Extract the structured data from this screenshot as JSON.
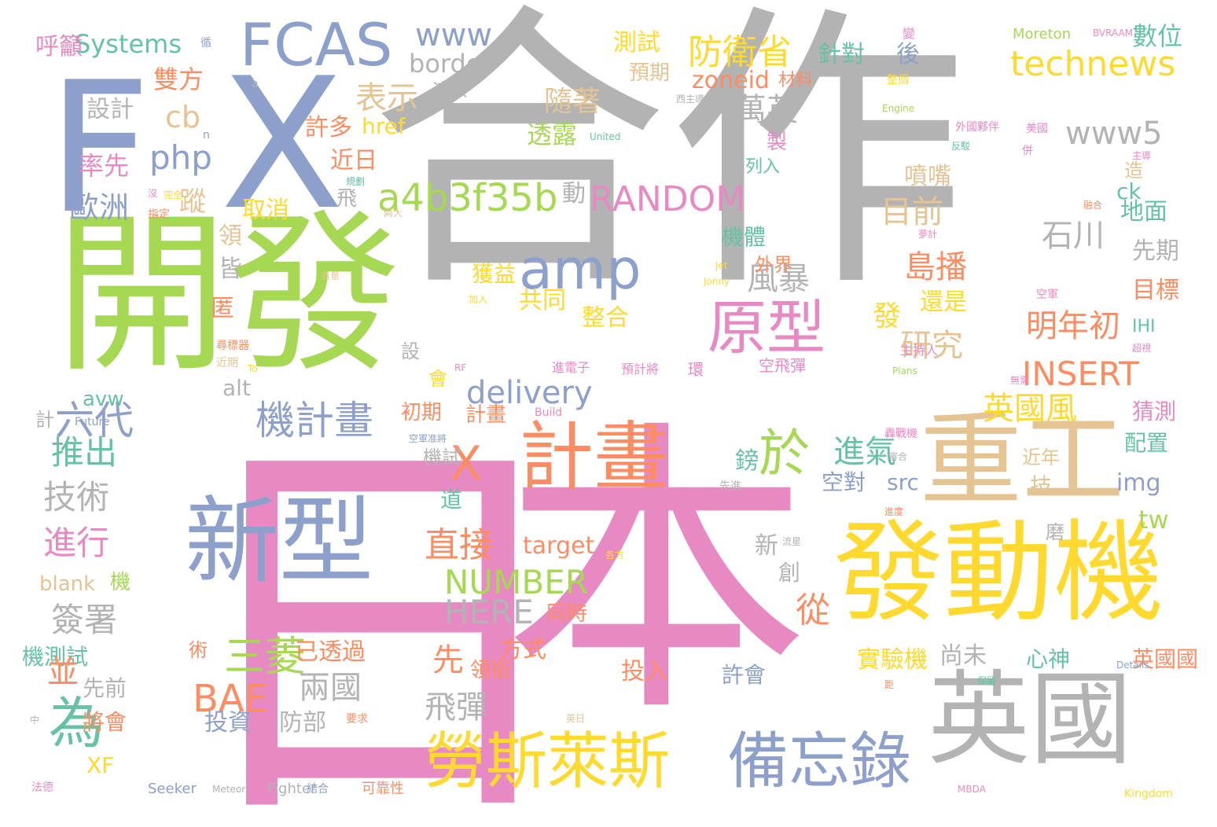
{
  "palette": {
    "gray": "#b3b3b3",
    "pink": "#e78ac3",
    "green": "#a6d854",
    "blue": "#8da0cb",
    "yellow": "#ffd92f",
    "tan": "#e5c494",
    "orange": "#fc8d62",
    "teal": "#66c2a5"
  },
  "words": [
    {
      "text": "合作",
      "color": "gray",
      "vertical": false
    },
    {
      "text": "本",
      "color": "pink",
      "vertical": false
    },
    {
      "text": "日",
      "color": "pink",
      "vertical": true
    },
    {
      "text": "開發",
      "color": "green",
      "vertical": false
    },
    {
      "text": "X",
      "color": "blue",
      "vertical": false
    },
    {
      "text": "F",
      "color": "blue",
      "vertical": false
    },
    {
      "text": "新型",
      "color": "blue",
      "vertical": false
    },
    {
      "text": "發動機",
      "color": "yellow",
      "vertical": false
    },
    {
      "text": "英國",
      "color": "gray",
      "vertical": false
    },
    {
      "text": "重工",
      "color": "tan",
      "vertical": false
    },
    {
      "text": "計畫",
      "color": "orange",
      "vertical": false
    },
    {
      "text": "勞斯萊斯",
      "color": "yellow",
      "vertical": false
    },
    {
      "text": "備忘錄",
      "color": "blue",
      "vertical": false
    },
    {
      "text": "原型",
      "color": "pink",
      "vertical": false
    },
    {
      "text": "FCAS",
      "color": "blue",
      "vertical": false
    },
    {
      "text": "amp",
      "color": "blue",
      "vertical": false
    },
    {
      "text": "於",
      "color": "green",
      "vertical": false
    },
    {
      "text": "X",
      "color": "orange",
      "vertical": false
    },
    {
      "text": "六代",
      "color": "blue",
      "vertical": false
    },
    {
      "text": "機計畫",
      "color": "blue",
      "vertical": false
    },
    {
      "text": "a4b3f35b",
      "color": "green",
      "vertical": false
    },
    {
      "text": "RANDOM",
      "color": "pink",
      "vertical": false
    },
    {
      "text": "technews",
      "color": "yellow",
      "vertical": false
    },
    {
      "text": "防衛省",
      "color": "yellow",
      "vertical": false
    },
    {
      "text": "www",
      "color": "blue",
      "vertical": false
    },
    {
      "text": "Systems",
      "color": "teal",
      "vertical": false
    },
    {
      "text": "為",
      "color": "teal",
      "vertical": false
    },
    {
      "text": "INSERT",
      "color": "orange",
      "vertical": false
    },
    {
      "text": "NUMBER",
      "color": "green",
      "vertical": false
    },
    {
      "text": "HERE",
      "color": "gray",
      "vertical": false
    },
    {
      "text": "delivery",
      "color": "blue",
      "vertical": false
    },
    {
      "text": "www5",
      "color": "gray",
      "vertical": false
    },
    {
      "text": "明年初",
      "color": "orange",
      "vertical": false
    },
    {
      "text": "英國風",
      "color": "yellow",
      "vertical": false
    },
    {
      "text": "三菱",
      "color": "green",
      "vertical": false
    },
    {
      "text": "BAE",
      "color": "orange",
      "vertical": false
    },
    {
      "text": "兩國",
      "color": "gray",
      "vertical": false
    },
    {
      "text": "飛彈",
      "color": "gray",
      "vertical": false
    },
    {
      "text": "直接",
      "color": "orange",
      "vertical": false
    },
    {
      "text": "表示",
      "color": "tan",
      "vertical": false
    },
    {
      "text": "php",
      "color": "blue",
      "vertical": false
    },
    {
      "text": "cb",
      "color": "tan",
      "vertical": false
    },
    {
      "text": "歐洲",
      "color": "blue",
      "vertical": false
    },
    {
      "text": "推出",
      "color": "teal",
      "vertical": false
    },
    {
      "text": "技術",
      "color": "gray",
      "vertical": false
    },
    {
      "text": "進行",
      "color": "pink",
      "vertical": false
    },
    {
      "text": "簽署",
      "color": "gray",
      "vertical": false
    },
    {
      "text": "萬英",
      "color": "gray",
      "vertical": false
    },
    {
      "text": "島播",
      "color": "orange",
      "vertical": false
    },
    {
      "text": "石川",
      "color": "gray",
      "vertical": false
    },
    {
      "text": "目前",
      "color": "tan",
      "vertical": false
    },
    {
      "text": "研究",
      "color": "tan",
      "vertical": false
    },
    {
      "text": "風暴",
      "color": "gray",
      "vertical": false
    },
    {
      "text": "zoneid",
      "color": "orange",
      "vertical": false
    },
    {
      "text": "border",
      "color": "gray",
      "vertical": false
    },
    {
      "text": "數位",
      "color": "teal",
      "vertical": false
    },
    {
      "text": "測試",
      "color": "yellow",
      "vertical": false
    },
    {
      "text": "雙方",
      "color": "orange",
      "vertical": false
    },
    {
      "text": "設計",
      "color": "gray",
      "vertical": false
    },
    {
      "text": "率先",
      "color": "pink",
      "vertical": false
    },
    {
      "text": "取消",
      "color": "yellow",
      "vertical": false
    },
    {
      "text": "近日",
      "color": "orange",
      "vertical": false
    },
    {
      "text": "許多",
      "color": "orange",
      "vertical": false
    },
    {
      "text": "href",
      "color": "yellow",
      "vertical": false
    },
    {
      "text": "透露",
      "color": "green",
      "vertical": false
    },
    {
      "text": "共同",
      "color": "yellow",
      "vertical": false
    },
    {
      "text": "整合",
      "color": "yellow",
      "vertical": false
    },
    {
      "text": "獲益",
      "color": "yellow",
      "vertical": false
    },
    {
      "text": "還是",
      "color": "yellow",
      "vertical": false
    },
    {
      "text": "目標",
      "color": "orange",
      "vertical": false
    },
    {
      "text": "先期",
      "color": "gray",
      "vertical": false
    },
    {
      "text": "地面",
      "color": "teal",
      "vertical": false
    },
    {
      "text": "噴嘴",
      "color": "tan",
      "vertical": false
    },
    {
      "text": "外界",
      "color": "orange",
      "vertical": false
    },
    {
      "text": "機體",
      "color": "teal",
      "vertical": false
    },
    {
      "text": "列入",
      "color": "teal",
      "vertical": false
    },
    {
      "text": "材料",
      "color": "orange",
      "vertical": false
    },
    {
      "text": "預期",
      "color": "tan",
      "vertical": false
    },
    {
      "text": "這款",
      "color": "gray",
      "vertical": false
    },
    {
      "text": "target",
      "color": "orange",
      "vertical": false
    },
    {
      "text": "src",
      "color": "blue",
      "vertical": false
    },
    {
      "text": "img",
      "color": "blue",
      "vertical": false
    },
    {
      "text": "tw",
      "color": "green",
      "vertical": false
    },
    {
      "text": "ck",
      "color": "teal",
      "vertical": false
    },
    {
      "text": "IHI",
      "color": "teal",
      "vertical": false
    },
    {
      "text": "alt",
      "color": "gray",
      "vertical": false
    },
    {
      "text": "avw",
      "color": "teal",
      "vertical": false
    },
    {
      "text": "blank",
      "color": "tan",
      "vertical": false
    },
    {
      "text": "機",
      "color": "green",
      "vertical": false
    },
    {
      "text": "機測試",
      "color": "teal",
      "vertical": false
    },
    {
      "text": "先前",
      "color": "gray",
      "vertical": false
    },
    {
      "text": "將會",
      "color": "orange",
      "vertical": false
    },
    {
      "text": "XF",
      "color": "yellow",
      "vertical": false
    },
    {
      "text": "並",
      "color": "orange",
      "vertical": false
    },
    {
      "text": "投資",
      "color": "blue",
      "vertical": false
    },
    {
      "text": "防部",
      "color": "gray",
      "vertical": false
    },
    {
      "text": "已透過",
      "color": "orange",
      "vertical": false
    },
    {
      "text": "初期",
      "color": "orange",
      "vertical": false
    },
    {
      "text": "計畫",
      "color": "orange",
      "vertical": false
    },
    {
      "text": "先",
      "color": "orange",
      "vertical": false
    },
    {
      "text": "方式",
      "color": "orange",
      "vertical": false
    },
    {
      "text": "領銜",
      "color": "orange",
      "vertical": false
    },
    {
      "text": "同時",
      "color": "orange",
      "vertical": false
    },
    {
      "text": "投入",
      "color": "orange",
      "vertical": false
    },
    {
      "text": "許會",
      "color": "blue",
      "vertical": false
    },
    {
      "text": "實驗機",
      "color": "yellow",
      "vertical": false
    },
    {
      "text": "尚未",
      "color": "gray",
      "vertical": false
    },
    {
      "text": "心神",
      "color": "teal",
      "vertical": false
    },
    {
      "text": "英國國",
      "color": "orange",
      "vertical": false
    },
    {
      "text": "猜測",
      "color": "pink",
      "vertical": false
    },
    {
      "text": "配置",
      "color": "teal",
      "vertical": false
    },
    {
      "text": "近年",
      "color": "tan",
      "vertical": false
    },
    {
      "text": "空對",
      "color": "blue",
      "vertical": false
    },
    {
      "text": "進氣",
      "color": "teal",
      "vertical": false
    },
    {
      "text": "鎊",
      "color": "teal",
      "vertical": false
    },
    {
      "text": "道",
      "color": "teal",
      "vertical": false
    },
    {
      "text": "機試",
      "color": "gray",
      "vertical": false
    },
    {
      "text": "環",
      "color": "pink",
      "vertical": false
    },
    {
      "text": "空飛彈",
      "color": "pink",
      "vertical": false
    },
    {
      "text": "進電子",
      "color": "pink",
      "vertical": false
    },
    {
      "text": "預計將",
      "color": "pink",
      "vertical": false
    },
    {
      "text": "主持人",
      "color": "pink",
      "vertical": false
    },
    {
      "text": "Seeker",
      "color": "blue",
      "vertical": false
    },
    {
      "text": "Meteor",
      "color": "gray",
      "vertical": false
    },
    {
      "text": "Fighter",
      "color": "gray",
      "vertical": false
    },
    {
      "text": "結合",
      "color": "blue",
      "vertical": false
    },
    {
      "text": "可靠性",
      "color": "orange",
      "vertical": false
    },
    {
      "text": "MBDA",
      "color": "pink",
      "vertical": false
    },
    {
      "text": "Kingdom",
      "color": "yellow",
      "vertical": false
    },
    {
      "text": "Moreton",
      "color": "green",
      "vertical": false
    },
    {
      "text": "BVRAAM",
      "color": "pink",
      "vertical": false
    },
    {
      "text": "呼籲",
      "color": "pink",
      "vertical": false
    },
    {
      "text": "循",
      "color": "blue",
      "vertical": false
    },
    {
      "text": "針對",
      "color": "teal",
      "vertical": false
    },
    {
      "text": "後",
      "color": "blue",
      "vertical": false
    },
    {
      "text": "變",
      "color": "pink",
      "vertical": false
    },
    {
      "text": "整個",
      "color": "yellow",
      "vertical": false
    },
    {
      "text": "隨著",
      "color": "tan",
      "vertical": false
    },
    {
      "text": "製",
      "color": "pink",
      "vertical": false
    },
    {
      "text": "飛",
      "color": "gray",
      "vertical": false
    },
    {
      "text": "動",
      "color": "gray",
      "vertical": false
    },
    {
      "text": "發",
      "color": "yellow",
      "vertical": false
    },
    {
      "text": "磨",
      "color": "gray",
      "vertical": false
    },
    {
      "text": "新",
      "color": "gray",
      "vertical": false
    },
    {
      "text": "創",
      "color": "gray",
      "vertical": false
    },
    {
      "text": "技",
      "color": "tan",
      "vertical": false
    },
    {
      "text": "造",
      "color": "tan",
      "vertical": false
    },
    {
      "text": "設",
      "color": "gray",
      "vertical": false
    },
    {
      "text": "會",
      "color": "yellow",
      "vertical": false
    },
    {
      "text": "領",
      "color": "tan",
      "vertical": false
    },
    {
      "text": "皆",
      "color": "gray",
      "vertical": false
    },
    {
      "text": "匿",
      "color": "orange",
      "vertical": false
    },
    {
      "text": "術",
      "color": "orange",
      "vertical": false
    },
    {
      "text": "計",
      "color": "gray",
      "vertical": false
    },
    {
      "text": "蹤",
      "color": "tan",
      "vertical": false
    },
    {
      "text": "從",
      "color": "orange",
      "vertical": false
    },
    {
      "text": "a",
      "color": "gray",
      "vertical": false
    },
    {
      "text": "n",
      "color": "blue",
      "vertical": false
    },
    {
      "text": "沒",
      "color": "pink",
      "vertical": false
    },
    {
      "text": "指定",
      "color": "orange",
      "vertical": false
    },
    {
      "text": "完全",
      "color": "yellow",
      "vertical": false
    },
    {
      "text": "規劃",
      "color": "teal",
      "vertical": false
    },
    {
      "text": "兩大",
      "color": "tan",
      "vertical": false
    },
    {
      "text": "United",
      "color": "teal",
      "vertical": false
    },
    {
      "text": "西主導",
      "color": "gray",
      "vertical": false
    },
    {
      "text": "Engine",
      "color": "green",
      "vertical": false
    },
    {
      "text": "外國夥伴",
      "color": "pink",
      "vertical": false
    },
    {
      "text": "美國",
      "color": "pink",
      "vertical": false
    },
    {
      "text": "併",
      "color": "pink",
      "vertical": false
    },
    {
      "text": "反駁",
      "color": "teal",
      "vertical": false
    },
    {
      "text": "主導",
      "color": "pink",
      "vertical": false
    },
    {
      "text": "融合",
      "color": "orange",
      "vertical": false
    },
    {
      "text": "夢計",
      "color": "pink",
      "vertical": false
    },
    {
      "text": "Jet",
      "color": "yellow",
      "vertical": false
    },
    {
      "text": "Jonny",
      "color": "yellow",
      "vertical": false
    },
    {
      "text": "有意",
      "color": "tan",
      "vertical": false
    },
    {
      "text": "加入",
      "color": "yellow",
      "vertical": false
    },
    {
      "text": "空軍",
      "color": "pink",
      "vertical": false
    },
    {
      "text": "超視",
      "color": "pink",
      "vertical": false
    },
    {
      "text": "尋標器",
      "color": "orange",
      "vertical": false
    },
    {
      "text": "近期",
      "color": "tan",
      "vertical": false
    },
    {
      "text": "To",
      "color": "yellow",
      "vertical": false
    },
    {
      "text": "RF",
      "color": "pink",
      "vertical": false
    },
    {
      "text": "Plans",
      "color": "green",
      "vertical": false
    },
    {
      "text": "無需",
      "color": "pink",
      "vertical": false
    },
    {
      "text": "Future",
      "color": "blue",
      "vertical": false
    },
    {
      "text": "Build",
      "color": "pink",
      "vertical": false
    },
    {
      "text": "空軍准將",
      "color": "blue",
      "vertical": false
    },
    {
      "text": "轟戰機",
      "color": "pink",
      "vertical": false
    },
    {
      "text": "審合",
      "color": "gray",
      "vertical": false
    },
    {
      "text": "先進",
      "color": "gray",
      "vertical": false
    },
    {
      "text": "進度",
      "color": "orange",
      "vertical": false
    },
    {
      "text": "流星",
      "color": "gray",
      "vertical": false
    },
    {
      "text": "各方",
      "color": "yellow",
      "vertical": false
    },
    {
      "text": "Details",
      "color": "blue",
      "vertical": false
    },
    {
      "text": "保留",
      "color": "teal",
      "vertical": false
    },
    {
      "text": "距",
      "color": "orange",
      "vertical": false
    },
    {
      "text": "中",
      "color": "gray",
      "vertical": false
    },
    {
      "text": "要求",
      "color": "orange",
      "vertical": false
    },
    {
      "text": "英日",
      "color": "tan",
      "vertical": false
    },
    {
      "text": "法德",
      "color": "pink",
      "vertical": false
    },
    {
      "text": "高昂",
      "color": "teal",
      "vertical": false
    },
    {
      "text": "展",
      "color": "orange",
      "vertical": false
    }
  ]
}
